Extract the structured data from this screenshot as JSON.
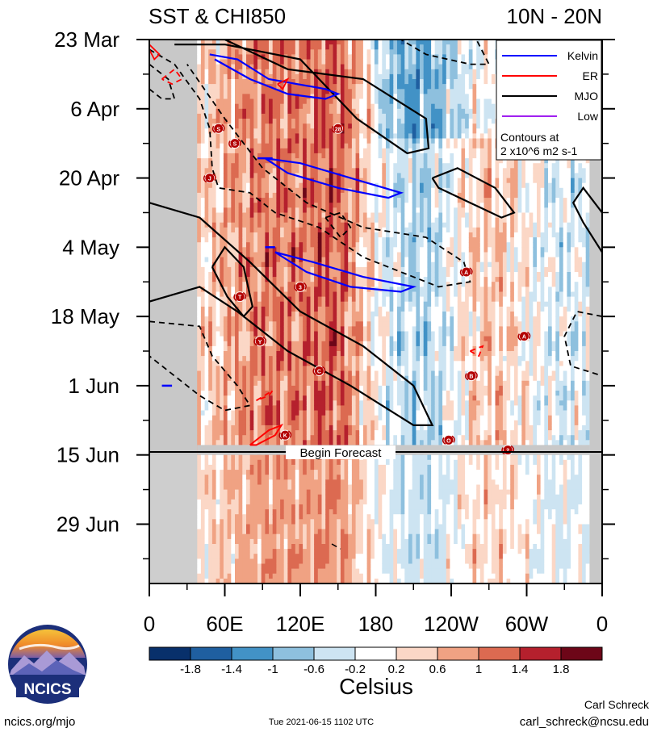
{
  "chart_data": {
    "type": "heatmap",
    "title_left": "SST & CHI850",
    "title_right": "10N - 20N",
    "x_ticks": [
      "0",
      "60E",
      "120E",
      "180",
      "120W",
      "60W",
      "0"
    ],
    "x_range_deg": [
      0,
      360
    ],
    "x_tick_values_deg": [
      0,
      60,
      120,
      180,
      240,
      300,
      360
    ],
    "y_ticks": [
      "23 Mar",
      "6 Apr",
      "20 Apr",
      "4 May",
      "18 May",
      "1 Jun",
      "15 Jun",
      "29 Jun"
    ],
    "y_tick_days": [
      0,
      14,
      28,
      42,
      56,
      70,
      84,
      98
    ],
    "y_range_days": [
      0,
      110
    ],
    "forecast_start_day": 84,
    "forecast_label": "Begin Forecast",
    "colorbar": {
      "label": "Celsius",
      "tick_labels": [
        "-1.8",
        "-1.4",
        "-1",
        "-0.6",
        "-0.2",
        "0.2",
        "0.6",
        "1",
        "1.4",
        "1.8"
      ],
      "colors": [
        "#08306b",
        "#1f5fa0",
        "#4292c6",
        "#8ec0de",
        "#cde4f2",
        "#ffffff",
        "#fbd7c6",
        "#f0a283",
        "#dc6a51",
        "#b5202d",
        "#6d0618"
      ]
    },
    "legend": {
      "items": [
        {
          "name": "Kelvin",
          "color": "#0000ff"
        },
        {
          "name": "ER",
          "color": "#ff0000"
        },
        {
          "name": "MJO",
          "color": "#000000"
        },
        {
          "name": "Low",
          "color": "#a020f0"
        }
      ],
      "note_line1": "Contours at",
      "note_line2": "2 x10^6 m2 s-1"
    },
    "storms": [
      {
        "label": "S",
        "lon": 55,
        "day": 18
      },
      {
        "label": "S",
        "lon": 68,
        "day": 21
      },
      {
        "label": "28",
        "lon": 150,
        "day": 18
      },
      {
        "label": "J",
        "lon": 48,
        "day": 28
      },
      {
        "label": "T",
        "lon": 72,
        "day": 52
      },
      {
        "label": "Y",
        "lon": 88,
        "day": 61
      },
      {
        "label": "3",
        "lon": 120,
        "day": 50
      },
      {
        "label": "C",
        "lon": 135,
        "day": 67
      },
      {
        "label": "K",
        "lon": 108,
        "day": 80
      },
      {
        "label": "A",
        "lon": 252,
        "day": 47
      },
      {
        "label": "A",
        "lon": 298,
        "day": 60
      },
      {
        "label": "B",
        "lon": 256,
        "day": 68
      },
      {
        "label": "O",
        "lon": 238,
        "day": 81
      },
      {
        "label": "2",
        "lon": 285,
        "day": 83
      }
    ]
  },
  "footer": {
    "logo_text": "NCICS",
    "url": "ncics.org/mjo",
    "timestamp": "Tue 2021-06-15 1102 UTC",
    "author": "Carl Schreck",
    "email": "carl_schreck@ncsu.edu"
  }
}
